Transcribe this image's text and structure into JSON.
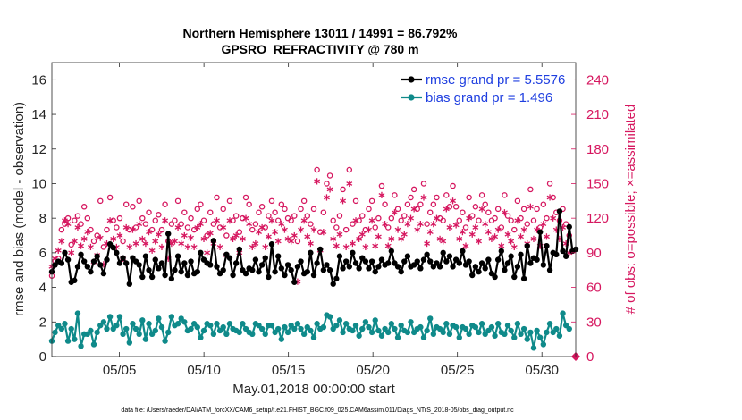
{
  "chart_data": {
    "type": "line",
    "title": "Northern Hemisphere 13011 / 14991 = 86.792%",
    "subtitle": "GPSRO_REFRACTIVITY @ 780 m",
    "xlabel": "May.01,2018 00:00:00 start",
    "ylabel": "rmse and bias (model - observation)",
    "y2label": "# of obs: o=possible; ×=assimilated",
    "footnote": "data file: /Users/raeder/DAI/ATM_forcXX/CAM6_setup/f.e21.FHIST_BGC.f09_025.CAM6assim.011/Diags_NTrS_2018-05/obs_diag_output.nc",
    "xlim": [
      1,
      32
    ],
    "ylim": [
      0,
      17
    ],
    "y2lim": [
      0,
      255
    ],
    "x_ticks": [
      5,
      10,
      15,
      20,
      25,
      30
    ],
    "x_tick_labels": [
      "05/05",
      "05/10",
      "05/15",
      "05/20",
      "05/25",
      "05/30"
    ],
    "y_ticks": [
      0,
      2,
      4,
      6,
      8,
      10,
      12,
      14,
      16
    ],
    "y_tick_labels": [
      "0",
      "2",
      "4",
      "6",
      "8",
      "10",
      "12",
      "14",
      "16"
    ],
    "y2_ticks": [
      0,
      30,
      60,
      90,
      120,
      150,
      180,
      210,
      240
    ],
    "y2_tick_labels": [
      "0",
      "30",
      "60",
      "90",
      "120",
      "150",
      "180",
      "210",
      "240"
    ],
    "legend_position": "top-right",
    "colors": {
      "rmse": "#000000",
      "bias": "#0f8a8a",
      "obs": "#d6175f",
      "legend_text": "#1f3fe0",
      "right_axis": "#d6175f"
    },
    "series": [
      {
        "name": "rmse grand pr = 5.5576",
        "axis": "left",
        "values": [
          4.9,
          5.3,
          5.5,
          5.4,
          6.0,
          5.6,
          4.3,
          4.4,
          5.2,
          5.9,
          5.5,
          5.2,
          4.9,
          5.5,
          5.8,
          5.3,
          4.8,
          5.6,
          6.5,
          6.3,
          6.0,
          5.4,
          5.7,
          5.4,
          4.2,
          5.7,
          5.5,
          5.3,
          4.6,
          5.8,
          5.0,
          4.6,
          5.6,
          5.1,
          5.4,
          4.7,
          7.1,
          4.5,
          5.0,
          5.8,
          4.9,
          5.4,
          4.7,
          5.5,
          4.8,
          4.9,
          6.0,
          5.6,
          5.4,
          5.3,
          6.7,
          5.2,
          4.8,
          5.0,
          5.9,
          5.7,
          4.7,
          5.4,
          6.2,
          5.0,
          4.8,
          5.1,
          5.0,
          5.6,
          4.9,
          5.3,
          5.7,
          4.6,
          6.5,
          4.9,
          5.8,
          5.1,
          4.7,
          5.3,
          5.0,
          4.3,
          5.2,
          5.5,
          4.8,
          4.9,
          6.0,
          4.7,
          5.4,
          6.2,
          5.0,
          5.3,
          5.0,
          4.2,
          4.5,
          5.8,
          5.1,
          5.5,
          5.2,
          6.0,
          5.4,
          5.1,
          5.7,
          5.5,
          5.1,
          5.5,
          4.9,
          5.2,
          5.6,
          5.3,
          5.4,
          6.1,
          5.4,
          5.2,
          4.9,
          5.5,
          5.8,
          5.2,
          5.3,
          5.5,
          5.1,
          5.6,
          5.9,
          5.5,
          5.2,
          5.4,
          5.2,
          6.0,
          5.5,
          5.8,
          5.2,
          5.6,
          5.4,
          6.1,
          5.3,
          5.5,
          4.7,
          5.2,
          4.9,
          5.4,
          5.1,
          5.6,
          4.8,
          4.6,
          5.6,
          6.1,
          5.0,
          5.4,
          5.8,
          4.6,
          5.2,
          5.9,
          4.5,
          6.4,
          5.4,
          5.7,
          5.6,
          7.2,
          5.3,
          6.4,
          5.0,
          6.0,
          5.9,
          8.4,
          6.1,
          5.8,
          7.5,
          6.1,
          6.2
        ]
      },
      {
        "name": "bias grand pr = 1.496",
        "axis": "left",
        "values": [
          0.9,
          1.4,
          1.8,
          1.6,
          1.9,
          0.9,
          1.6,
          1.0,
          2.5,
          0.6,
          1.3,
          1.3,
          1.5,
          0.7,
          1.4,
          1.8,
          2.0,
          1.6,
          2.3,
          1.6,
          1.8,
          2.3,
          1.3,
          1.6,
          0.8,
          1.9,
          1.6,
          1.3,
          2.1,
          1.0,
          1.9,
          1.3,
          1.5,
          2.2,
          1.7,
          0.9,
          1.4,
          2.3,
          1.8,
          1.9,
          2.2,
          2.0,
          1.5,
          1.6,
          1.9,
          1.7,
          1.1,
          1.5,
          1.9,
          1.8,
          1.3,
          1.9,
          1.5,
          1.7,
          1.3,
          1.9,
          1.6,
          1.5,
          1.4,
          1.9,
          1.6,
          1.4,
          1.3,
          1.9,
          1.8,
          1.6,
          1.3,
          1.8,
          1.8,
          1.4,
          1.6,
          1.0,
          1.7,
          1.4,
          1.8,
          1.6,
          1.9,
          1.6,
          1.3,
          1.7,
          1.5,
          1.1,
          1.9,
          1.6,
          1.7,
          2.4,
          2.3,
          1.6,
          1.8,
          2.1,
          1.4,
          1.9,
          1.6,
          1.5,
          1.8,
          1.2,
          1.6,
          2.0,
          1.7,
          1.4,
          2.1,
          1.5,
          1.2,
          1.6,
          1.4,
          1.9,
          1.6,
          1.1,
          1.8,
          1.5,
          1.4,
          2.0,
          1.4,
          1.6,
          1.7,
          1.1,
          1.5,
          2.2,
          1.3,
          1.7,
          1.6,
          1.4,
          1.9,
          1.3,
          1.8,
          1.7,
          1.1,
          1.7,
          1.6,
          1.3,
          1.8,
          1.7,
          1.4,
          1.9,
          1.3,
          1.5,
          1.7,
          1.2,
          1.9,
          1.4,
          1.3,
          1.8,
          1.5,
          1.1,
          1.9,
          1.3,
          1.6,
          1.0,
          1.4,
          0.5,
          1.5,
          1.1,
          0.7,
          1.4,
          1.9,
          1.4,
          1.6,
          1.2,
          2.5,
          1.8,
          1.6
        ]
      },
      {
        "name": "obs possible",
        "axis": "right",
        "marker": "circle",
        "values": [
          70,
          83,
          85,
          110,
          115,
          120,
          97,
          118,
          122,
          115,
          130,
          120,
          110,
          100,
          105,
          135,
          95,
          110,
          138,
          118,
          112,
          120,
          100,
          132,
          110,
          130,
          112,
          135,
          120,
          115,
          125,
          110,
          118,
          123,
          110,
          132,
          100,
          115,
          118,
          135,
          115,
          125,
          112,
          120,
          110,
          128,
          132,
          118,
          105,
          125,
          115,
          138,
          112,
          128,
          105,
          135,
          118,
          122,
          108,
          120,
          138,
          132,
          110,
          115,
          125,
          130,
          112,
          122,
          135,
          125,
          118,
          132,
          128,
          120,
          118,
          122,
          100,
          128,
          135,
          122,
          115,
          128,
          162,
          108,
          125,
          150,
          157,
          118,
          112,
          122,
          145,
          110,
          162,
          115,
          135,
          118,
          122,
          110,
          128,
          135,
          112,
          120,
          148,
          132,
          112,
          120,
          140,
          128,
          118,
          122,
          132,
          138,
          145,
          128,
          132,
          150,
          115,
          125,
          132,
          138,
          120,
          118,
          140,
          130,
          148,
          130,
          118,
          125,
          112,
          138,
          122,
          130,
          118,
          140,
          132,
          125,
          118,
          120,
          128,
          112,
          140,
          122,
          118,
          110,
          135,
          120,
          128,
          115,
          145,
          118,
          128,
          112,
          132,
          120,
          150,
          138,
          125,
          118,
          128,
          115,
          105
        ]
      },
      {
        "name": "obs assimilated",
        "axis": "right",
        "marker": "asterisk",
        "values": [
          78,
          85,
          92,
          100,
          118,
          115,
          90,
          100,
          112,
          96,
          102,
          108,
          95,
          82,
          88,
          103,
          80,
          98,
          118,
          102,
          95,
          105,
          85,
          112,
          95,
          110,
          98,
          115,
          102,
          98,
          108,
          92,
          100,
          106,
          95,
          118,
          85,
          98,
          100,
          112,
          98,
          105,
          95,
          103,
          95,
          112,
          115,
          102,
          90,
          107,
          98,
          118,
          95,
          112,
          88,
          118,
          102,
          105,
          90,
          102,
          120,
          115,
          95,
          98,
          108,
          112,
          95,
          104,
          118,
          108,
          100,
          115,
          110,
          102,
          100,
          105,
          65,
          110,
          118,
          104,
          98,
          110,
          152,
          92,
          108,
          138,
          145,
          102,
          96,
          106,
          135,
          95,
          150,
          98,
          118,
          102,
          106,
          95,
          110,
          118,
          96,
          104,
          140,
          115,
          96,
          102,
          125,
          110,
          102,
          106,
          115,
          120,
          128,
          110,
          115,
          138,
          98,
          108,
          115,
          120,
          102,
          100,
          128,
          112,
          135,
          114,
          102,
          108,
          96,
          120,
          106,
          112,
          100,
          128,
          115,
          108,
          102,
          104,
          110,
          96,
          125,
          106,
          100,
          95,
          118,
          104,
          110,
          98,
          130,
          102,
          110,
          96,
          115,
          104,
          138,
          120,
          110,
          102,
          112,
          98,
          90
        ]
      }
    ]
  }
}
